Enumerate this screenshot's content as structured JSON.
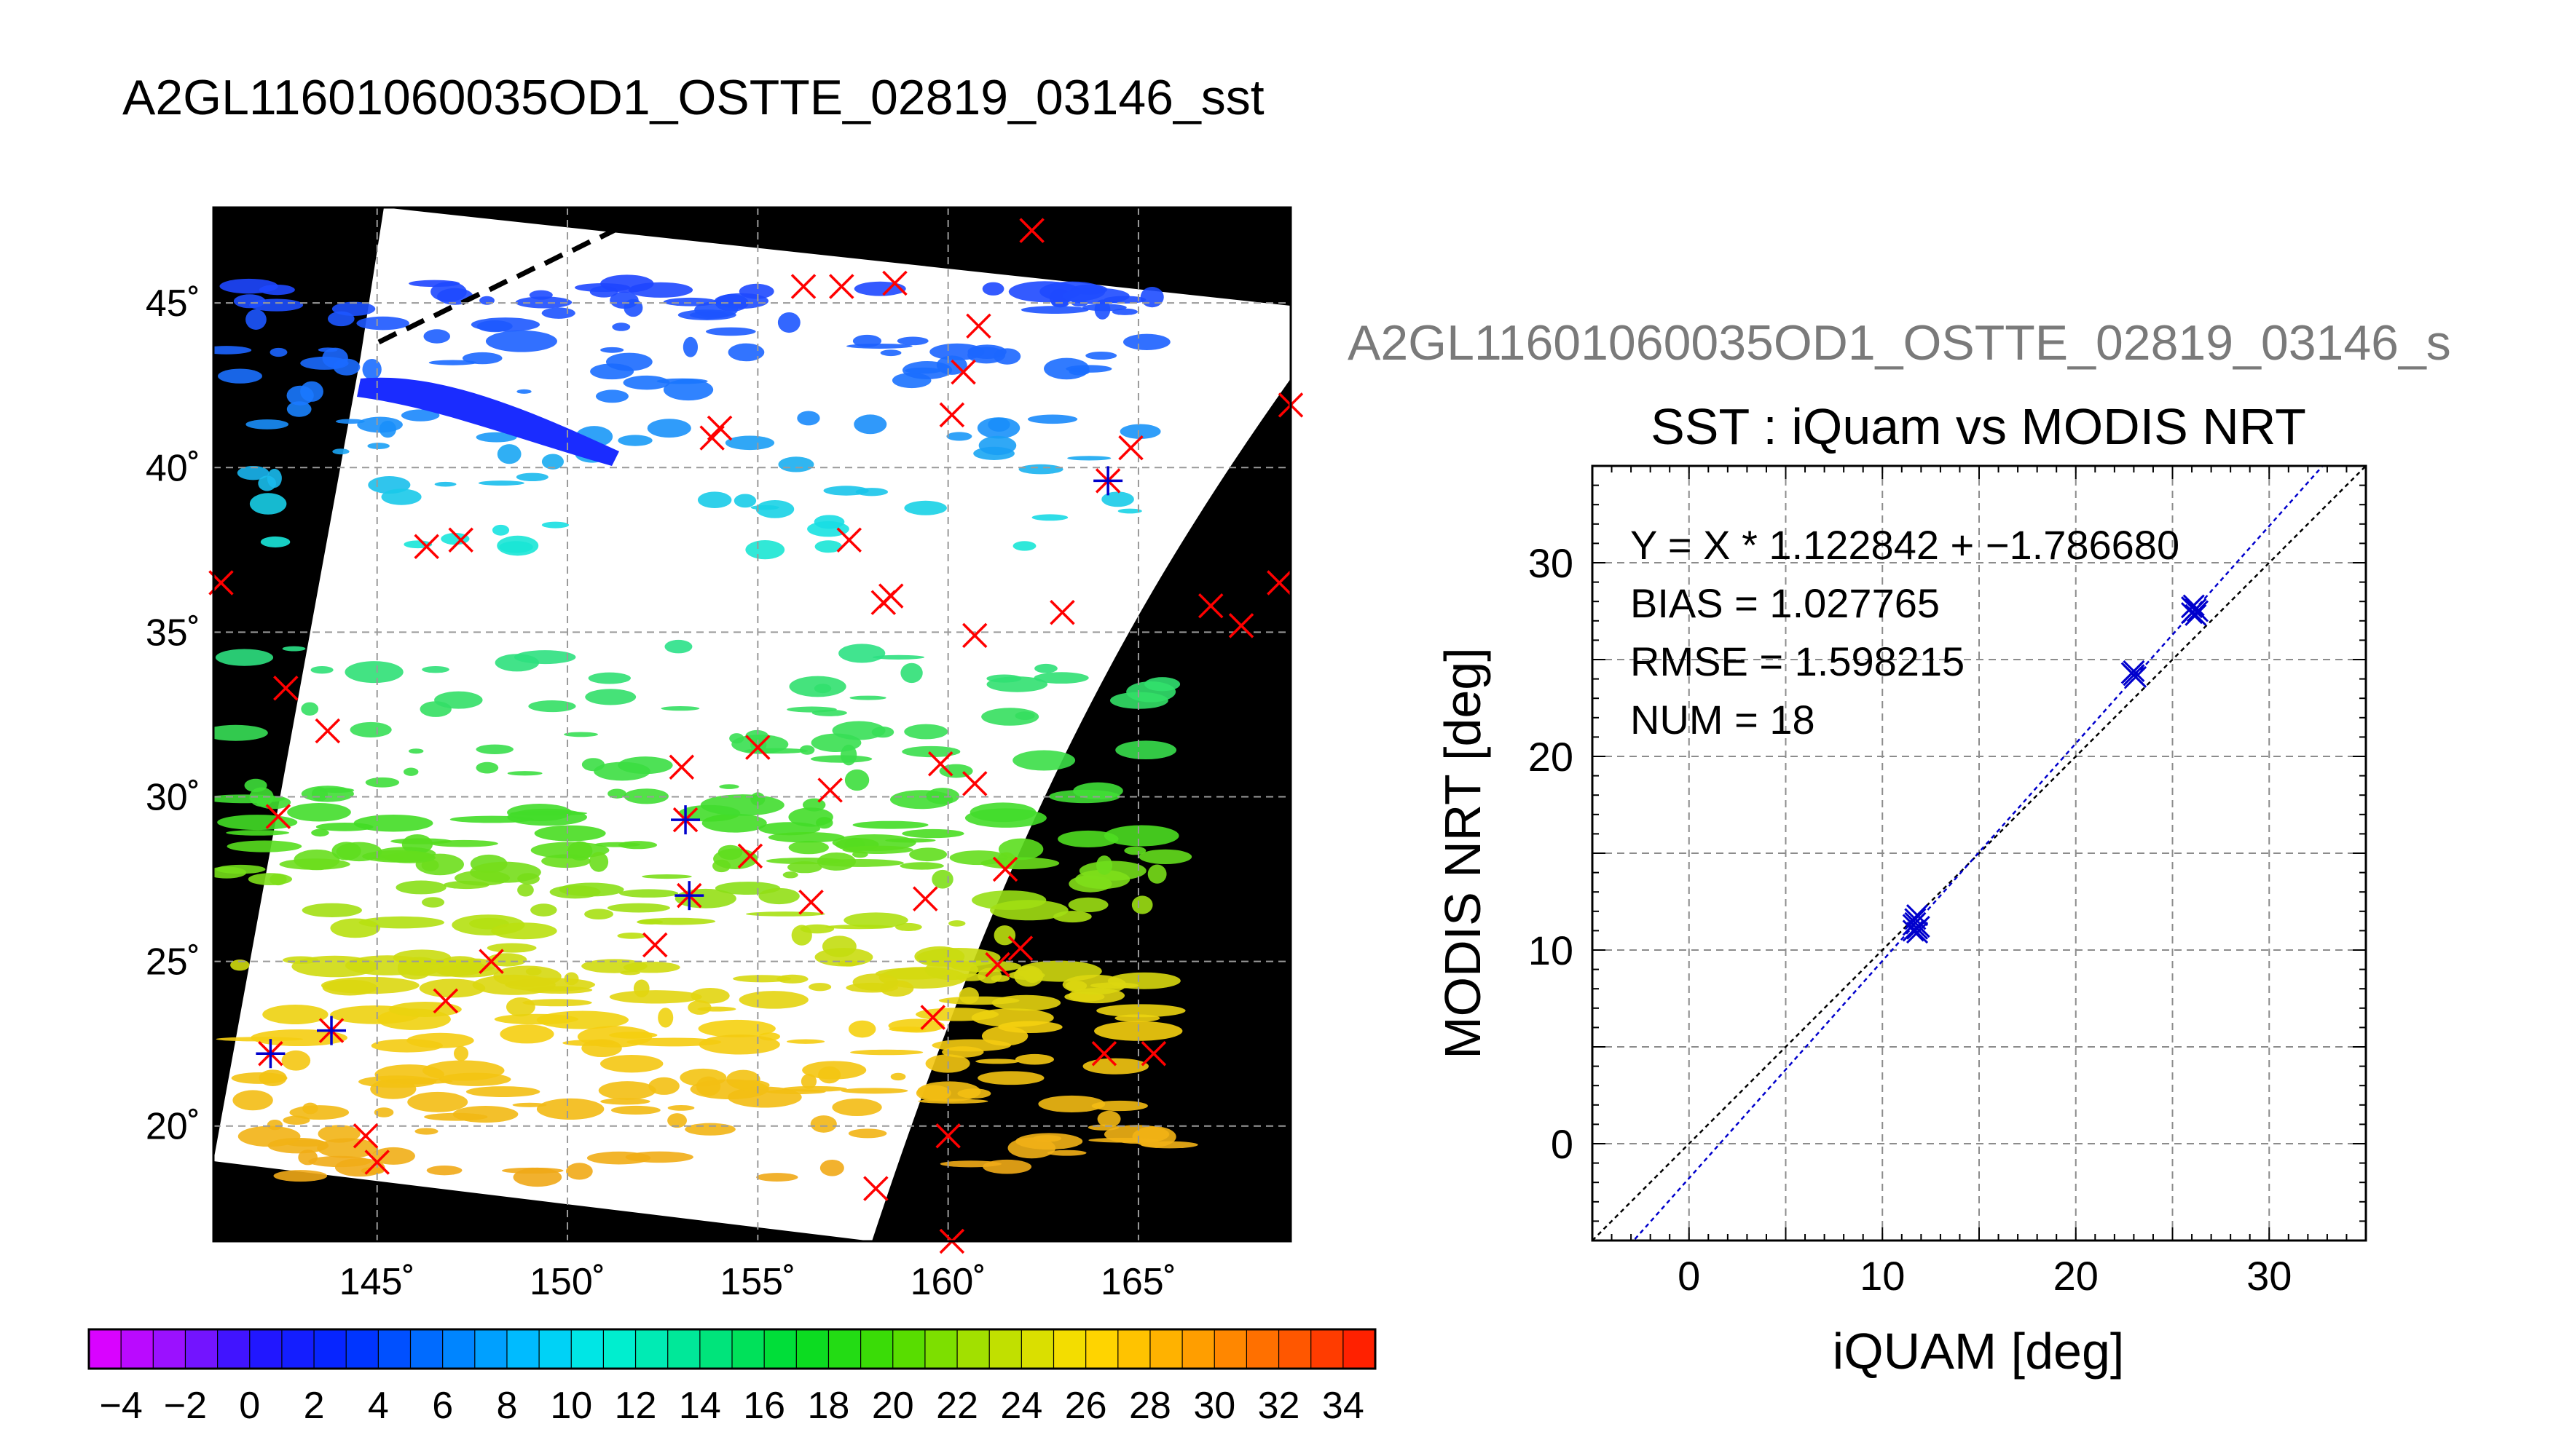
{
  "main_title": "A2GL11601060035OD1_OSTTE_02819_03146_sst",
  "secondary_title": "A2GL11601060035OD1_OSTTE_02819_03146_s",
  "colors": {
    "match_marker": "#ff0000",
    "valid_match_marker": "#0000cc",
    "fit_line": "#0000cc",
    "identity_line": "#000000",
    "map_background": "#000000",
    "grid": "#999999"
  },
  "chart_data": [
    {
      "type": "map",
      "name": "SST swath map",
      "x_ticks": [
        "145˚",
        "150˚",
        "155˚",
        "160˚",
        "165˚"
      ],
      "x_tick_values": [
        145,
        150,
        155,
        160,
        165
      ],
      "y_ticks": [
        "20˚",
        "25˚",
        "30˚",
        "35˚",
        "40˚",
        "45˚"
      ],
      "y_tick_values": [
        20,
        25,
        30,
        35,
        40,
        45
      ],
      "xlim": [
        140.7,
        169.0
      ],
      "ylim": [
        16.5,
        47.9
      ],
      "grid": true,
      "colorbar": {
        "min": -5,
        "max": 35,
        "step": 1,
        "tick_labels": [
          "−4",
          "−2",
          "0",
          "2",
          "4",
          "6",
          "8",
          "10",
          "12",
          "14",
          "16",
          "18",
          "20",
          "22",
          "24",
          "26",
          "28",
          "30",
          "32",
          "34"
        ],
        "tick_values": [
          -4,
          -2,
          0,
          2,
          4,
          6,
          8,
          10,
          12,
          14,
          16,
          18,
          20,
          22,
          24,
          26,
          28,
          30,
          32,
          34
        ]
      },
      "red_marks": [
        [
          162.2,
          47.2
        ],
        [
          156.2,
          45.5
        ],
        [
          157.2,
          45.5
        ],
        [
          158.6,
          45.6
        ],
        [
          160.8,
          44.3
        ],
        [
          160.4,
          42.9
        ],
        [
          160.1,
          41.6
        ],
        [
          154.0,
          41.2
        ],
        [
          153.8,
          40.9
        ],
        [
          164.8,
          40.6
        ],
        [
          169.0,
          41.9
        ],
        [
          146.3,
          37.6
        ],
        [
          147.2,
          37.8
        ],
        [
          157.4,
          37.8
        ],
        [
          140.9,
          36.5
        ],
        [
          158.5,
          36.1
        ],
        [
          158.3,
          35.9
        ],
        [
          163.0,
          35.6
        ],
        [
          166.9,
          35.8
        ],
        [
          168.7,
          36.5
        ],
        [
          167.7,
          35.2
        ],
        [
          160.7,
          34.9
        ],
        [
          142.6,
          33.3
        ],
        [
          143.7,
          32.0
        ],
        [
          155.0,
          31.5
        ],
        [
          153.0,
          30.9
        ],
        [
          159.8,
          31.0
        ],
        [
          160.7,
          30.4
        ],
        [
          156.9,
          30.2
        ],
        [
          142.4,
          29.4
        ],
        [
          154.8,
          28.2
        ],
        [
          161.5,
          27.8
        ],
        [
          156.4,
          26.8
        ],
        [
          159.4,
          26.9
        ],
        [
          152.3,
          25.5
        ],
        [
          161.9,
          25.4
        ],
        [
          161.3,
          24.9
        ],
        [
          148.0,
          25.0
        ],
        [
          146.8,
          23.8
        ],
        [
          159.6,
          23.3
        ],
        [
          164.1,
          22.2
        ],
        [
          165.4,
          22.2
        ],
        [
          144.7,
          19.7
        ],
        [
          145.0,
          18.9
        ],
        [
          160.0,
          19.7
        ],
        [
          158.1,
          18.1
        ],
        [
          160.1,
          16.5
        ]
      ],
      "star_marks": [
        [
          153.1,
          29.3
        ],
        [
          153.2,
          27.0
        ],
        [
          143.8,
          22.9
        ],
        [
          142.2,
          22.2
        ],
        [
          164.2,
          39.6
        ]
      ]
    },
    {
      "type": "scatter",
      "title": "SST : iQuam vs MODIS NRT",
      "xlabel": "iQUAM [deg]",
      "ylabel": "MODIS NRT [deg]",
      "xlim": [
        -5,
        35
      ],
      "ylim": [
        -5,
        35
      ],
      "x_ticks": [
        "0",
        "10",
        "20",
        "30"
      ],
      "x_tick_values": [
        0,
        10,
        20,
        30
      ],
      "y_ticks": [
        "0",
        "10",
        "20",
        "30"
      ],
      "y_tick_values": [
        0,
        10,
        20,
        30
      ],
      "grid": true,
      "annotations": [
        "Y = X * 1.122842 + −1.786680",
        "BIAS = 1.027765",
        "RMSE = 1.598215",
        "NUM = 18"
      ],
      "fit": {
        "slope": 1.122842,
        "intercept": -1.78668
      },
      "points": [
        [
          11.6,
          11.0
        ],
        [
          11.7,
          11.4
        ],
        [
          11.8,
          11.1
        ],
        [
          11.8,
          11.8
        ],
        [
          11.6,
          11.3
        ],
        [
          11.9,
          11.2
        ],
        [
          11.7,
          11.6
        ],
        [
          11.8,
          10.9
        ],
        [
          23.0,
          24.2
        ],
        [
          22.9,
          24.3
        ],
        [
          23.1,
          24.1
        ],
        [
          23.0,
          24.4
        ],
        [
          26.0,
          27.4
        ],
        [
          26.2,
          27.6
        ],
        [
          26.1,
          27.8
        ],
        [
          26.3,
          27.5
        ],
        [
          26.0,
          27.7
        ],
        [
          26.2,
          27.3
        ]
      ]
    }
  ]
}
